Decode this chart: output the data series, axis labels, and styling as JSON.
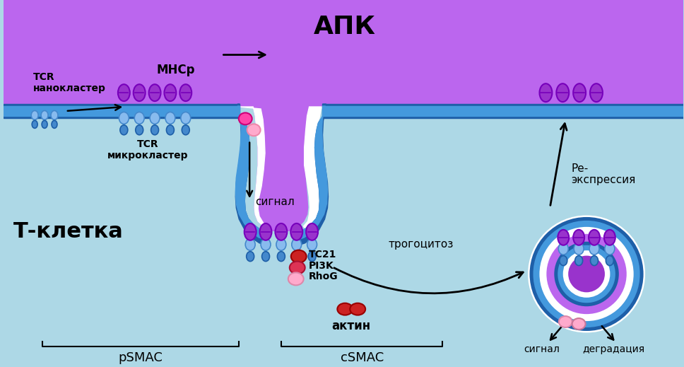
{
  "bg_color": "#add8e6",
  "tcell_color": "#b8dff0",
  "apc_color": "#bb66ee",
  "apc_color2": "#cc88ff",
  "membrane_color": "#4499dd",
  "membrane_border": "#1e5fa8",
  "purple_dark": "#7700bb",
  "purple_mid": "#9933cc",
  "purple_light": "#cc88ff",
  "blue_light": "#88bbee",
  "blue_mid": "#4488cc",
  "blue_dark": "#1e5fa8",
  "white_color": "#ffffff",
  "pink_hot": "#ff44aa",
  "pink_mid": "#ee6699",
  "pink_light": "#ffaacc",
  "red_color": "#cc2222",
  "label_TCR_nano": "TCR\nнанокластер",
  "label_TCR_micro": "TCR\nмикрокластер",
  "label_MHCr": "МНСр",
  "label_APK": "АПК",
  "label_Tcell": "Т-клетка",
  "label_signal1": "сигнал",
  "label_signal2": "сигнал",
  "label_trogocytosis": "трогоцитоз",
  "label_TC21": "TC21",
  "label_PI3K": "PI3K",
  "label_RhoG": "RhoG",
  "label_actin": "актин",
  "label_re_expression": "Ре-\nэкспрессия",
  "label_degradation": "деградация",
  "label_pSMAC": "pSMAC",
  "label_cSMAC": "cSMAC"
}
